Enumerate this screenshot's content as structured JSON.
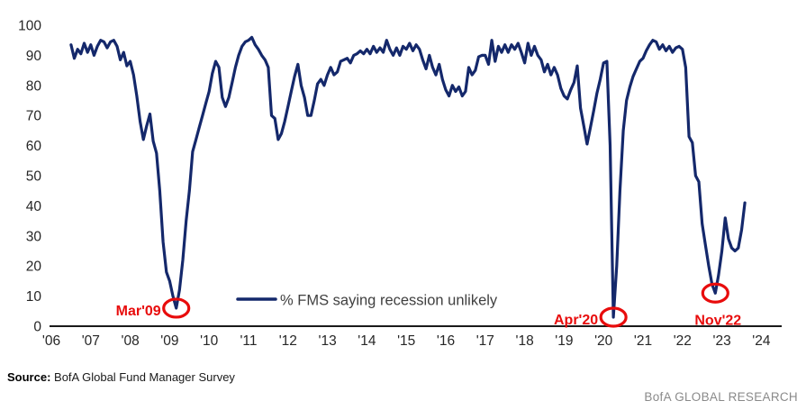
{
  "chart_data": {
    "type": "line",
    "title": "",
    "xlabel": "",
    "ylabel": "",
    "ylim": [
      0,
      100
    ],
    "y_ticks": [
      0,
      10,
      20,
      30,
      40,
      50,
      60,
      70,
      80,
      90,
      100
    ],
    "x_tick_years": [
      2006,
      2007,
      2008,
      2009,
      2010,
      2011,
      2012,
      2013,
      2014,
      2015,
      2016,
      2017,
      2018,
      2019,
      2020,
      2021,
      2022,
      2023,
      2024
    ],
    "x_tick_labels": [
      "'06",
      "'07",
      "'08",
      "'09",
      "'10",
      "'11",
      "'12",
      "'13",
      "'14",
      "'15",
      "'16",
      "'17",
      "'18",
      "'19",
      "'20",
      "'21",
      "'22",
      "'23",
      "'24"
    ],
    "grid": false,
    "legend": {
      "label": "% FMS saying recession unlikely",
      "position": "bottom-center"
    },
    "series": [
      {
        "name": "% FMS saying recession unlikely",
        "start": "2006-07",
        "frequency": "monthly",
        "values": [
          93.5,
          89,
          92,
          90.5,
          94,
          91,
          93.5,
          90,
          93,
          95,
          94.5,
          92.5,
          94.5,
          95,
          93,
          88.5,
          91,
          86.5,
          88,
          83.5,
          76.5,
          68,
          62,
          66.5,
          70.5,
          61.5,
          57.5,
          45,
          28,
          18,
          15,
          10,
          6,
          12,
          22,
          35,
          45,
          58,
          62,
          66,
          70,
          74,
          78,
          84,
          88,
          86,
          76,
          73,
          76,
          81,
          86,
          90,
          93,
          94.5,
          95,
          96,
          93.5,
          92,
          90,
          88.5,
          86,
          70,
          69,
          62,
          64,
          68,
          73,
          78,
          83,
          87,
          80,
          76,
          70,
          70,
          75,
          80.5,
          82,
          80,
          83.5,
          86,
          83.5,
          84.5,
          88,
          88.5,
          89,
          87.5,
          90,
          90.5,
          91.5,
          90.5,
          92,
          90.5,
          93,
          91,
          92.5,
          91,
          95,
          92,
          90,
          92.5,
          90,
          93,
          92,
          94,
          91.5,
          93.5,
          92,
          88.5,
          85.5,
          90,
          86,
          83.5,
          87,
          82,
          78.5,
          76.5,
          80,
          78,
          79.5,
          76.5,
          78,
          86,
          83.5,
          85,
          89.5,
          90,
          90,
          87,
          95,
          88,
          93,
          91,
          93.5,
          91,
          93.5,
          92,
          94,
          91,
          87.5,
          94,
          90,
          93,
          90,
          88.5,
          84.5,
          87,
          83.5,
          86,
          83.5,
          79,
          76.5,
          75.5,
          78.5,
          81,
          86.5,
          72.5,
          66.5,
          60.5,
          66,
          71.5,
          77.5,
          82,
          87.5,
          88,
          60,
          3,
          20,
          45,
          65,
          75,
          79.5,
          83,
          85.5,
          88,
          89,
          91.5,
          93.5,
          95,
          94.5,
          92,
          93.5,
          91.5,
          93,
          91,
          92.5,
          93,
          92,
          86,
          63,
          61,
          50,
          48,
          34,
          27,
          20,
          14,
          11,
          17,
          25,
          36,
          29,
          26,
          25,
          26,
          32,
          41
        ]
      }
    ],
    "annotations": [
      {
        "label": "Mar'09",
        "month": "2009-03",
        "value": 6,
        "label_position": "left"
      },
      {
        "label": "Apr'20",
        "month": "2020-04",
        "value": 3,
        "label_position": "left"
      },
      {
        "label": "Nov'22",
        "month": "2022-11",
        "value": 11,
        "label_position": "below"
      }
    ]
  },
  "colors": {
    "line": "#14286b",
    "annotation": "#e80c0c",
    "axis": "#1a1a1a",
    "tick_label": "#262626",
    "legend_text": "#404040",
    "source_text": "#000000",
    "branding_text": "#8a8a8a",
    "background": "#ffffff"
  },
  "footer": {
    "source_label": "Source:",
    "source_text": "BofA Global Fund Manager Survey",
    "branding": "BofA GLOBAL RESEARCH"
  }
}
